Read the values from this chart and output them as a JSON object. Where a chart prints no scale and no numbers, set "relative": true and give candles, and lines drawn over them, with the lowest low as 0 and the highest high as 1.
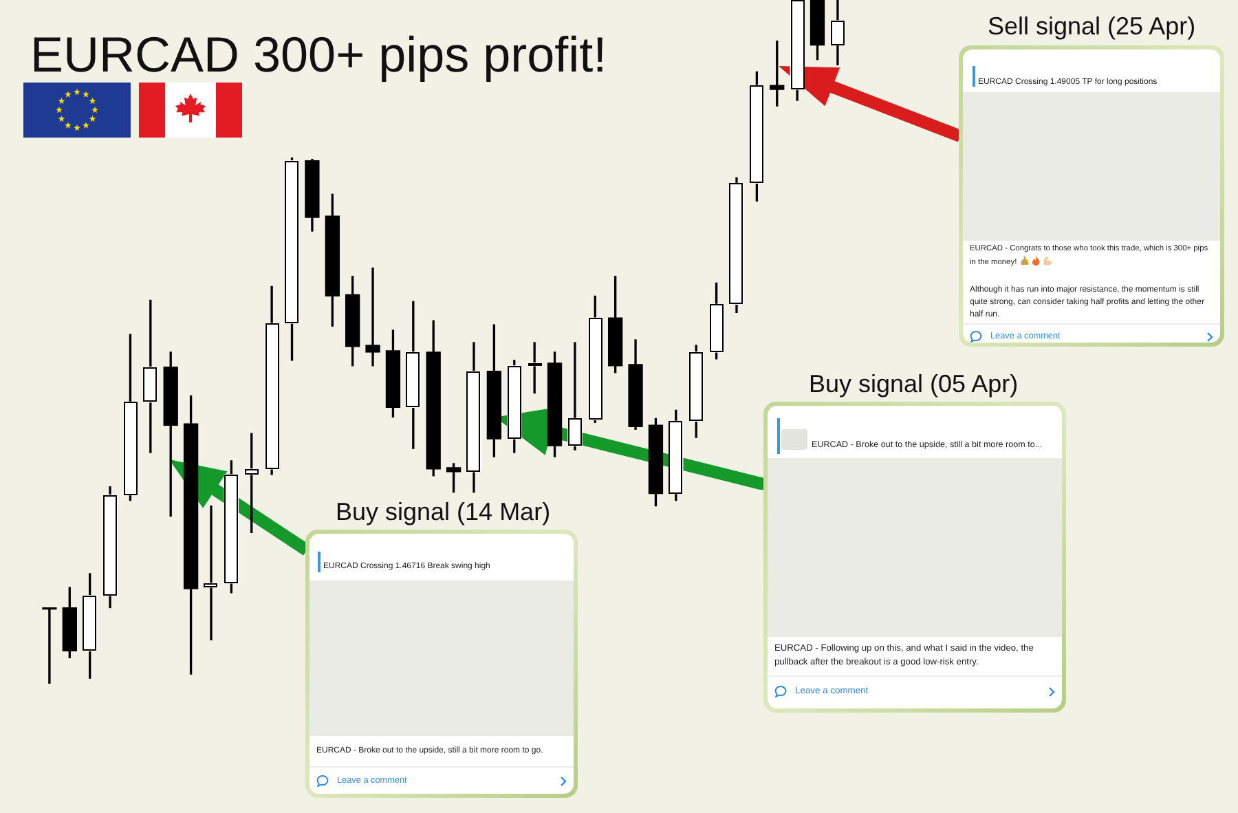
{
  "chart_data": {
    "type": "candlestick",
    "title": "EURCAD 300+ pips profit!",
    "categories": [
      null,
      null,
      null,
      null,
      null,
      null,
      null,
      null,
      null,
      null,
      null,
      null,
      null,
      null,
      null,
      null,
      null,
      null,
      null,
      null,
      null,
      null,
      null,
      null,
      null,
      null,
      null,
      null,
      null,
      null,
      null,
      null,
      null,
      null,
      null,
      null,
      null,
      null,
      null,
      null
    ],
    "ohlc": [
      [
        0.111,
        0.111,
        0,
        0.109
      ],
      [
        0.111,
        0.141,
        0.038,
        0.048
      ],
      [
        0.048,
        0.161,
        0.008,
        0.129
      ],
      [
        0.129,
        0.288,
        0.111,
        0.276
      ],
      [
        0.276,
        0.511,
        0.268,
        0.412
      ],
      [
        0.412,
        0.561,
        0.338,
        0.463
      ],
      [
        0.463,
        0.485,
        0.245,
        0.378
      ],
      [
        0.38,
        0.421,
        0.014,
        0.139
      ],
      [
        0.141,
        0.26,
        0.064,
        0.147
      ],
      [
        0.147,
        0.326,
        0.133,
        0.306
      ],
      [
        0.306,
        0.366,
        0.221,
        0.314
      ],
      [
        0.314,
        0.581,
        0.306,
        0.527
      ],
      [
        0.527,
        0.769,
        0.473,
        0.765
      ],
      [
        0.765,
        0.767,
        0.662,
        0.682
      ],
      [
        0.684,
        0.716,
        0.523,
        0.567
      ],
      [
        0.569,
        0.596,
        0.465,
        0.493
      ],
      [
        0.495,
        0.608,
        0.465,
        0.485
      ],
      [
        0.487,
        0.517,
        0.39,
        0.404
      ],
      [
        0.404,
        0.559,
        0.344,
        0.485
      ],
      [
        0.485,
        0.531,
        0.304,
        0.314
      ],
      [
        0.316,
        0.322,
        0.28,
        0.31
      ],
      [
        0.31,
        0.499,
        0.28,
        0.457
      ],
      [
        0.457,
        0.525,
        0.332,
        0.358
      ],
      [
        0.358,
        0.473,
        0.338,
        0.465
      ],
      [
        0.465,
        0.499,
        0.425,
        0.469
      ],
      [
        0.469,
        0.485,
        0.332,
        0.348
      ],
      [
        0.348,
        0.499,
        0.342,
        0.388
      ],
      [
        0.386,
        0.567,
        0.382,
        0.535
      ],
      [
        0.535,
        0.596,
        0.455,
        0.465
      ],
      [
        0.467,
        0.503,
        0.372,
        0.376
      ],
      [
        0.378,
        0.388,
        0.26,
        0.278
      ],
      [
        0.278,
        0.4,
        0.268,
        0.384
      ],
      [
        0.384,
        0.495,
        0.36,
        0.485
      ],
      [
        0.485,
        0.586,
        0.475,
        0.555
      ],
      [
        0.555,
        0.74,
        0.543,
        0.732
      ],
      [
        0.732,
        0.895,
        0.706,
        0.875
      ],
      [
        0.875,
        0.94,
        0.845,
        0.869
      ],
      [
        0.869,
        1,
        0.853,
        1
      ],
      [
        1,
        1,
        0.913,
        0.934
      ],
      [
        0.934,
        1,
        0.905,
        0.97
      ]
    ],
    "relative": true,
    "tick_labels": false,
    "annotations": [
      "Buy signal (14 Mar)",
      "EURCAD Crossing 1.46716 Break swing high",
      "EURCAD - Broke out to the upside, still a bit more room to go.",
      "Leave a comment",
      "Buy signal (05 Apr)",
      "EURCAD - Broke out to the upside, still a bit more room to...",
      "EURCAD - Following up on this, and what I said in the video, the pullback after the breakout is a good low-risk entry.",
      "Leave a comment",
      "Sell signal (25 Apr)",
      "EURCAD Crossing 1.49005 TP for long positions",
      "EURCAD - Congrats to those who took this trade, which is 300+ pips in the money!",
      "Although it has run into major resistance, the momentum is still quite strong, can consider taking half profits and letting the other half run.",
      "Leave a comment"
    ]
  }
}
